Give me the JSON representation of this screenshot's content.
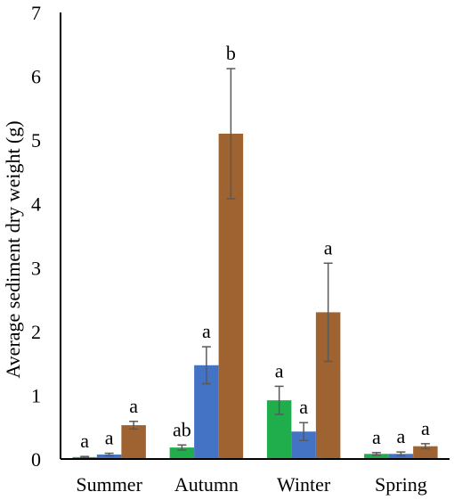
{
  "chart_data": {
    "type": "bar",
    "title": "",
    "xlabel": "",
    "ylabel": "Average sediment dry weight (g)",
    "ylim": [
      0,
      7
    ],
    "yticks": [
      0,
      1,
      2,
      3,
      4,
      5,
      6,
      7
    ],
    "grid": false,
    "legend": "none",
    "categories": [
      "Summer",
      "Autumn",
      "Winter",
      "Spring"
    ],
    "series": [
      {
        "color": "#1fae4b",
        "values": [
          0.03,
          0.18,
          0.92,
          0.08
        ],
        "errors": [
          0.01,
          0.04,
          0.22,
          0.02
        ],
        "sig_labels": [
          "a",
          "ab",
          "a",
          "a"
        ]
      },
      {
        "color": "#4472c4",
        "values": [
          0.07,
          1.47,
          0.43,
          0.08
        ],
        "errors": [
          0.02,
          0.29,
          0.14,
          0.03
        ],
        "sig_labels": [
          "a",
          "a",
          "a",
          "a"
        ]
      },
      {
        "color": "#9e6330",
        "values": [
          0.53,
          5.1,
          2.3,
          0.2
        ],
        "errors": [
          0.06,
          1.02,
          0.77,
          0.04
        ],
        "sig_labels": [
          "a",
          "b",
          "a",
          "a"
        ]
      }
    ]
  }
}
